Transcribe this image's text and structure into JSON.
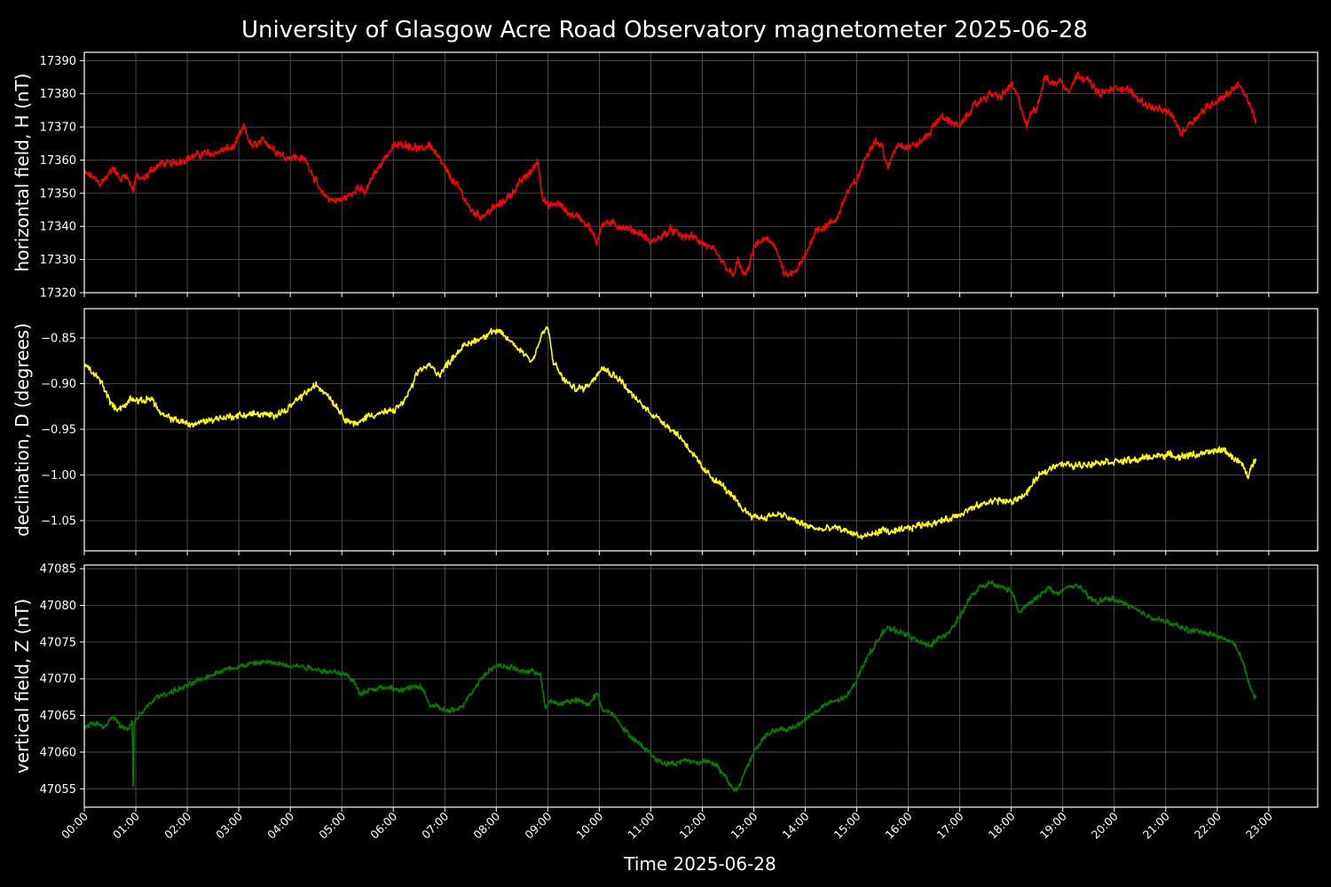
{
  "title": "University of Glasgow Acre Road Observatory magnetometer 2025-06-28",
  "xlabel": "Time 2025-06-28",
  "x_ticks": [
    "00:00",
    "01:00",
    "02:00",
    "03:00",
    "04:00",
    "05:00",
    "06:00",
    "07:00",
    "08:00",
    "09:00",
    "10:00",
    "11:00",
    "12:00",
    "13:00",
    "14:00",
    "15:00",
    "16:00",
    "17:00",
    "18:00",
    "19:00",
    "20:00",
    "21:00",
    "22:00",
    "23:00"
  ],
  "colors": {
    "background": "#000000",
    "H": "#ff0000",
    "D": "#ffff00",
    "Z": "#008000",
    "grid": "#5a5a5a"
  },
  "chart_data": [
    {
      "type": "line",
      "ylabel": "horizontal field, H (nT)",
      "xlim": [
        0,
        23.95
      ],
      "ylim": [
        17320,
        17392.5
      ],
      "y_ticks": [
        "17320",
        "17330",
        "17340",
        "17350",
        "17360",
        "17370",
        "17380",
        "17390"
      ],
      "grid": true,
      "series": [
        {
          "color": "#ff0000",
          "x": [
            0,
            0.15,
            0.3,
            0.45,
            0.55,
            0.7,
            0.8,
            0.95,
            1.0,
            1.15,
            1.3,
            1.5,
            1.7,
            1.9,
            2.1,
            2.3,
            2.5,
            2.7,
            2.9,
            3.0,
            3.1,
            3.25,
            3.5,
            3.7,
            3.9,
            4.1,
            4.3,
            4.4,
            4.6,
            4.8,
            5.0,
            5.2,
            5.3,
            5.45,
            5.6,
            5.8,
            6.0,
            6.2,
            6.4,
            6.55,
            6.7,
            6.9,
            7.1,
            7.3,
            7.5,
            7.7,
            7.9,
            8.1,
            8.3,
            8.5,
            8.7,
            8.8,
            8.9,
            9.0,
            9.2,
            9.4,
            9.6,
            9.8,
            9.95,
            10.05,
            10.2,
            10.4,
            10.6,
            10.8,
            11.0,
            11.2,
            11.4,
            11.6,
            11.8,
            12.0,
            12.2,
            12.4,
            12.6,
            12.7,
            12.8,
            12.9,
            13.0,
            13.2,
            13.4,
            13.6,
            13.8,
            14.0,
            14.2,
            14.4,
            14.6,
            14.8,
            15.0,
            15.2,
            15.35,
            15.5,
            15.6,
            15.7,
            15.8,
            16.0,
            16.2,
            16.4,
            16.6,
            16.8,
            17.0,
            17.2,
            17.4,
            17.6,
            17.8,
            18.0,
            18.15,
            18.3,
            18.4,
            18.5,
            18.65,
            18.8,
            18.95,
            19.1,
            19.3,
            19.5,
            19.7,
            19.9,
            20.1,
            20.3,
            20.5,
            20.7,
            20.9,
            21.1,
            21.3,
            21.45,
            21.6,
            21.8,
            22.0,
            22.2,
            22.4,
            22.6,
            22.75
          ],
          "y": [
            17356,
            17355,
            17353,
            17355,
            17358,
            17354,
            17356,
            17351,
            17355,
            17354,
            17357,
            17359,
            17359,
            17360,
            17361,
            17362,
            17362,
            17363,
            17364,
            17367,
            17370,
            17364,
            17366,
            17363,
            17361,
            17361,
            17360,
            17357,
            17350,
            17348,
            17348,
            17350,
            17352,
            17350,
            17355,
            17360,
            17364,
            17365,
            17364,
            17363,
            17365,
            17360,
            17355,
            17351,
            17345,
            17343,
            17345,
            17347,
            17350,
            17354,
            17357,
            17360,
            17349,
            17346,
            17347,
            17344,
            17343,
            17340,
            17335,
            17341,
            17341,
            17340,
            17339,
            17338,
            17335,
            17337,
            17339,
            17337,
            17337,
            17335,
            17333,
            17329,
            17325,
            17330,
            17325,
            17327,
            17334,
            17336,
            17335,
            17325,
            17326,
            17331,
            17339,
            17340,
            17342,
            17350,
            17354,
            17362,
            17366,
            17364,
            17357,
            17362,
            17365,
            17364,
            17365,
            17368,
            17373,
            17372,
            17370,
            17375,
            17378,
            17380,
            17379,
            17383,
            17378,
            17370,
            17375,
            17376,
            17385,
            17383,
            17384,
            17381,
            17386,
            17384,
            17380,
            17381,
            17382,
            17381,
            17378,
            17376,
            17375,
            17374,
            17368,
            17371,
            17373,
            17376,
            17378,
            17380,
            17383,
            17378,
            17372
          ],
          "noise": 1.4
        }
      ]
    },
    {
      "type": "line",
      "ylabel": "declination, D (degrees)",
      "xlim": [
        0,
        23.95
      ],
      "ylim": [
        -1.083,
        -0.818
      ],
      "y_ticks": [
        "−0.85",
        "−0.90",
        "−0.95",
        "−1.00",
        "−1.05"
      ],
      "grid": true,
      "series": [
        {
          "color": "#ffff00",
          "x": [
            0,
            0.2,
            0.35,
            0.5,
            0.6,
            0.8,
            0.9,
            1.1,
            1.3,
            1.5,
            1.8,
            2.1,
            2.4,
            2.7,
            3.0,
            3.3,
            3.6,
            3.9,
            4.1,
            4.3,
            4.5,
            4.7,
            4.9,
            5.1,
            5.3,
            5.5,
            5.8,
            6.0,
            6.2,
            6.35,
            6.5,
            6.7,
            6.9,
            7.1,
            7.3,
            7.5,
            7.7,
            7.9,
            8.1,
            8.3,
            8.5,
            8.7,
            8.9,
            9.0,
            9.1,
            9.3,
            9.5,
            9.7,
            9.9,
            10.05,
            10.2,
            10.4,
            10.6,
            10.8,
            11.0,
            11.2,
            11.4,
            11.6,
            11.8,
            12.0,
            12.2,
            12.4,
            12.6,
            12.8,
            13.0,
            13.2,
            13.4,
            13.6,
            13.8,
            14.0,
            14.3,
            14.6,
            14.9,
            15.1,
            15.3,
            15.5,
            15.7,
            15.9,
            16.2,
            16.5,
            16.8,
            17.1,
            17.4,
            17.7,
            18.0,
            18.3,
            18.5,
            18.7,
            18.9,
            19.2,
            19.5,
            19.8,
            20.1,
            20.4,
            20.7,
            21.0,
            21.3,
            21.5,
            21.7,
            21.9,
            22.1,
            22.3,
            22.5,
            22.6,
            22.75
          ],
          "y": [
            -0.88,
            -0.89,
            -0.9,
            -0.92,
            -0.927,
            -0.925,
            -0.915,
            -0.92,
            -0.915,
            -0.935,
            -0.94,
            -0.945,
            -0.94,
            -0.937,
            -0.935,
            -0.933,
            -0.935,
            -0.93,
            -0.92,
            -0.91,
            -0.902,
            -0.91,
            -0.925,
            -0.94,
            -0.945,
            -0.935,
            -0.932,
            -0.93,
            -0.92,
            -0.905,
            -0.885,
            -0.88,
            -0.89,
            -0.875,
            -0.862,
            -0.855,
            -0.85,
            -0.843,
            -0.845,
            -0.855,
            -0.865,
            -0.875,
            -0.845,
            -0.838,
            -0.875,
            -0.895,
            -0.905,
            -0.905,
            -0.895,
            -0.88,
            -0.888,
            -0.895,
            -0.91,
            -0.922,
            -0.932,
            -0.94,
            -0.95,
            -0.96,
            -0.975,
            -0.993,
            -1.003,
            -1.012,
            -1.025,
            -1.038,
            -1.045,
            -1.047,
            -1.043,
            -1.045,
            -1.05,
            -1.055,
            -1.06,
            -1.058,
            -1.063,
            -1.068,
            -1.065,
            -1.06,
            -1.063,
            -1.06,
            -1.055,
            -1.052,
            -1.048,
            -1.04,
            -1.033,
            -1.027,
            -1.03,
            -1.02,
            -1.003,
            -0.995,
            -0.987,
            -0.99,
            -0.988,
            -0.985,
            -0.985,
            -0.984,
            -0.98,
            -0.978,
            -0.98,
            -0.978,
            -0.977,
            -0.975,
            -0.972,
            -0.98,
            -0.99,
            -1.002,
            -0.98
          ],
          "noise": 0.0045
        }
      ]
    },
    {
      "type": "line",
      "ylabel": "vertical field, Z (nT)",
      "xlim": [
        0,
        23.95
      ],
      "ylim": [
        47052.5,
        47085.5
      ],
      "y_ticks": [
        "47055",
        "47060",
        "47065",
        "47070",
        "47075",
        "47080",
        "47085"
      ],
      "grid": true,
      "series": [
        {
          "color": "#008000",
          "x": [
            0,
            0.2,
            0.4,
            0.55,
            0.7,
            0.85,
            0.93,
            0.95,
            0.97,
            1.0,
            1.2,
            1.4,
            1.6,
            1.8,
            2.0,
            2.3,
            2.6,
            2.9,
            3.2,
            3.5,
            3.8,
            4.1,
            4.4,
            4.7,
            5.0,
            5.2,
            5.35,
            5.5,
            5.8,
            6.1,
            6.4,
            6.55,
            6.7,
            6.9,
            7.1,
            7.3,
            7.5,
            7.7,
            7.9,
            8.1,
            8.3,
            8.5,
            8.7,
            8.85,
            8.95,
            9.05,
            9.2,
            9.4,
            9.6,
            9.8,
            9.95,
            10.05,
            10.3,
            10.5,
            10.7,
            10.9,
            11.1,
            11.3,
            11.5,
            11.7,
            11.9,
            12.1,
            12.3,
            12.5,
            12.6,
            12.7,
            12.8,
            12.9,
            13.0,
            13.2,
            13.4,
            13.6,
            13.8,
            14.0,
            14.2,
            14.4,
            14.6,
            14.8,
            15.0,
            15.2,
            15.4,
            15.5,
            15.6,
            15.8,
            16.0,
            16.2,
            16.4,
            16.6,
            16.8,
            17.0,
            17.2,
            17.4,
            17.6,
            17.8,
            18.0,
            18.15,
            18.3,
            18.5,
            18.7,
            18.9,
            19.1,
            19.3,
            19.5,
            19.7,
            19.9,
            20.1,
            20.3,
            20.5,
            20.7,
            20.9,
            21.1,
            21.3,
            21.5,
            21.7,
            21.9,
            22.1,
            22.3,
            22.5,
            22.6,
            22.75
          ],
          "y": [
            47063.5,
            47064,
            47063.5,
            47065,
            47063.5,
            47063,
            47064,
            47055.5,
            47064,
            47064.5,
            47066,
            47067.5,
            47068,
            47068.5,
            47069,
            47070,
            47071,
            47071.5,
            47072,
            47072.3,
            47072,
            47071.8,
            47071.5,
            47071,
            47070.8,
            47070,
            47068,
            47068.5,
            47068.8,
            47068.5,
            47068.8,
            47069,
            47066.5,
            47066,
            47065.5,
            47066,
            47068,
            47070,
            47071.5,
            47071.8,
            47071.5,
            47071,
            47071,
            47070.8,
            47066,
            47067,
            47066.5,
            47067,
            47067,
            47066.5,
            47068,
            47066,
            47065,
            47063,
            47061.5,
            47060.5,
            47059,
            47058.5,
            47058.5,
            47059,
            47058.5,
            47059,
            47058,
            47056,
            47055,
            47055,
            47057,
            47058.5,
            47060,
            47062,
            47063,
            47063,
            47063.5,
            47064.5,
            47065.5,
            47066.5,
            47067,
            47067.5,
            47070,
            47073,
            47075,
            47076.5,
            47076.8,
            47076.5,
            47076,
            47075,
            47074.5,
            47075.5,
            47076.5,
            47078.5,
            47081,
            47082.5,
            47083,
            47082.5,
            47082,
            47079,
            47080,
            47081,
            47082.5,
            47081.5,
            47082.5,
            47082.8,
            47081,
            47080.5,
            47081,
            47080.5,
            47080,
            47079,
            47078.5,
            47078,
            47077.5,
            47077,
            47076.5,
            47076.5,
            47076,
            47075.5,
            47075,
            47072.5,
            47069.5,
            47067.3
          ],
          "noise": 0.45
        }
      ]
    }
  ]
}
